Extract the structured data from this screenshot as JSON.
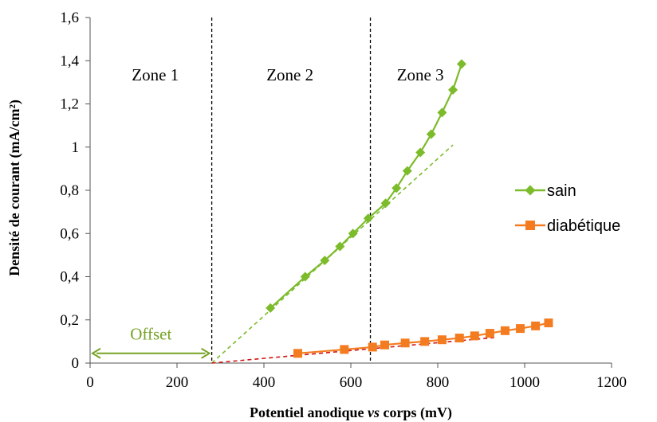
{
  "colors": {
    "sain": "#7cbb2a",
    "diabetique": "#f47c20",
    "offset": "#77a324",
    "fit_diabetique": "#d01515",
    "zone_line": "#000000"
  },
  "chart_data": {
    "type": "scatter",
    "xlabel_parts": [
      "Potentiel anodique ",
      "vs",
      " corps (mV)"
    ],
    "ylabel": "Densité de courant (mA/cm²)",
    "xlim": [
      0,
      1200
    ],
    "ylim": [
      0,
      1.6
    ],
    "x_ticks": [
      0,
      200,
      400,
      600,
      800,
      1000,
      1200
    ],
    "x_tick_labels": [
      "0",
      "200",
      "400",
      "600",
      "800",
      "1000",
      "1200"
    ],
    "y_ticks": [
      0,
      0.2,
      0.4,
      0.6,
      0.8,
      1.0,
      1.2,
      1.4,
      1.6
    ],
    "y_tick_labels": [
      "0",
      "0,2",
      "0,4",
      "0,6",
      "0,8",
      "1",
      "1,2",
      "1,4",
      "1,6"
    ],
    "grid": false,
    "legend_position": "right",
    "series": [
      {
        "name": "sain",
        "marker": "diamond",
        "color_key": "sain",
        "x": [
          415,
          495,
          540,
          575,
          605,
          640,
          680,
          705,
          730,
          760,
          785,
          810,
          835,
          855
        ],
        "y": [
          0.255,
          0.4,
          0.475,
          0.54,
          0.6,
          0.67,
          0.74,
          0.81,
          0.89,
          0.975,
          1.06,
          1.16,
          1.265,
          1.385
        ]
      },
      {
        "name": "diabétique",
        "marker": "square",
        "color_key": "diabetique",
        "x": [
          478,
          585,
          650,
          678,
          725,
          770,
          810,
          850,
          885,
          920,
          955,
          990,
          1025,
          1055
        ],
        "y": [
          0.045,
          0.063,
          0.074,
          0.084,
          0.093,
          0.1,
          0.108,
          0.116,
          0.126,
          0.138,
          0.15,
          0.16,
          0.172,
          0.186
        ]
      }
    ],
    "fit_lines": [
      {
        "for": "sain",
        "x": [
          280,
          835
        ],
        "y": [
          0.0,
          1.01
        ],
        "color_key": "sain",
        "style": "dashed"
      },
      {
        "for": "diabétique",
        "x": [
          280,
          930
        ],
        "y": [
          0.0,
          0.118
        ],
        "color_key": "fit_diabetique",
        "style": "dashed"
      }
    ],
    "zone_boundaries": [
      280,
      645
    ],
    "zones": [
      {
        "label": "Zone 1",
        "x": 150
      },
      {
        "label": "Zone 2",
        "x": 460
      },
      {
        "label": "Zone 3",
        "x": 760
      }
    ],
    "zone_label_y": 1.33,
    "offset": {
      "label": "Offset",
      "from": 0,
      "to": 280,
      "y": 0.045,
      "label_y": 0.135
    }
  }
}
